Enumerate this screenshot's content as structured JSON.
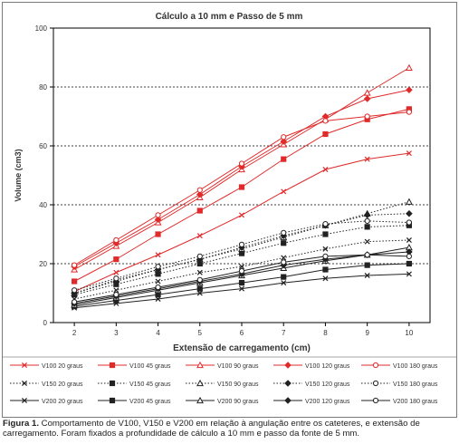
{
  "chart_data": {
    "type": "line",
    "title": "Cálculo a 10 mm e Passo de 5 mm",
    "xlabel": "Extensão de carregamento (cm)",
    "ylabel": "Volume (cm3)",
    "x": [
      2,
      3,
      4,
      5,
      6,
      7,
      8,
      9,
      10
    ],
    "xlim": [
      1.5,
      10.5
    ],
    "ylim": [
      0,
      100
    ],
    "yticks": [
      0,
      20,
      40,
      60,
      80,
      100
    ],
    "ygrid": [
      20,
      40,
      60,
      80
    ],
    "legend_position": "bottom",
    "series": [
      {
        "name": "V100 20 graus",
        "color": "#e02b2b",
        "dash": "solid",
        "marker": "x",
        "values": [
          10.5,
          17,
          23,
          29.5,
          36.5,
          44.5,
          52,
          55.5,
          57.5
        ]
      },
      {
        "name": "V100 45 graus",
        "color": "#e02b2b",
        "dash": "solid",
        "marker": "square",
        "values": [
          14,
          21.5,
          30,
          38,
          46,
          55.5,
          64,
          69,
          72.5
        ]
      },
      {
        "name": "V100 90 graus",
        "color": "#e02b2b",
        "dash": "solid",
        "marker": "triangle",
        "values": [
          18,
          26,
          34,
          42.5,
          52,
          60.5,
          69,
          78,
          86.5
        ]
      },
      {
        "name": "V100 120 graus",
        "color": "#e02b2b",
        "dash": "solid",
        "marker": "diamond",
        "values": [
          19,
          27,
          35,
          43.5,
          53,
          61.5,
          70,
          76,
          79
        ]
      },
      {
        "name": "V100 180 graus",
        "color": "#e02b2b",
        "dash": "solid",
        "marker": "circle-open",
        "values": [
          19.5,
          28,
          36.5,
          45,
          54,
          63,
          68.5,
          70,
          71.5
        ]
      },
      {
        "name": "V150 20 graus",
        "color": "#222222",
        "dash": "dotted",
        "marker": "x",
        "values": [
          8,
          11,
          14,
          17,
          19,
          22,
          25,
          27.5,
          28
        ]
      },
      {
        "name": "V150 45 graus",
        "color": "#222222",
        "dash": "dotted",
        "marker": "square",
        "values": [
          9.5,
          13,
          16.5,
          20,
          23.5,
          27,
          30,
          32.5,
          33
        ]
      },
      {
        "name": "V150 90 graus",
        "color": "#222222",
        "dash": "dotted",
        "marker": "triangle",
        "values": [
          10,
          14.5,
          18,
          21.5,
          25,
          29,
          33,
          37,
          41
        ]
      },
      {
        "name": "V150 120 graus",
        "color": "#222222",
        "dash": "dotted",
        "marker": "diamond",
        "values": [
          10,
          14,
          18,
          21.5,
          25.5,
          29.5,
          33,
          36.5,
          37
        ]
      },
      {
        "name": "V150 180 graus",
        "color": "#222222",
        "dash": "dotted",
        "marker": "circle-open",
        "values": [
          11,
          15,
          19,
          22.5,
          26.5,
          30.5,
          33.5,
          34.5,
          34
        ]
      },
      {
        "name": "V200 20 graus",
        "color": "#222222",
        "dash": "solid",
        "marker": "x",
        "values": [
          5,
          6.5,
          8,
          10,
          11.5,
          13.5,
          15,
          16,
          16.5
        ]
      },
      {
        "name": "V200 45 graus",
        "color": "#222222",
        "dash": "solid",
        "marker": "square",
        "values": [
          5.5,
          7.5,
          9.5,
          11.5,
          13.5,
          15.5,
          18,
          19.5,
          20
        ]
      },
      {
        "name": "V200 90 graus",
        "color": "#222222",
        "dash": "solid",
        "marker": "triangle",
        "values": [
          6,
          8.5,
          11,
          13.5,
          16,
          18.5,
          21,
          23,
          25.5
        ]
      },
      {
        "name": "V200 120 graus",
        "color": "#222222",
        "dash": "solid",
        "marker": "diamond",
        "values": [
          6.5,
          9,
          11.5,
          14,
          16.5,
          19.5,
          21.5,
          23,
          24
        ]
      },
      {
        "name": "V200 180 graus",
        "color": "#222222",
        "dash": "solid",
        "marker": "circle-open",
        "values": [
          7,
          9.5,
          12,
          14.5,
          17.5,
          20.5,
          22.5,
          23,
          22.5
        ]
      }
    ]
  },
  "caption": {
    "label": "Figura 1.",
    "text": "Comportamento de V100, V150 e V200 em relação à angulação entre os cateteres, e extensão de carregamento. Foram fixados a profundidade de cálculo a 10 mm e passo da fonte de 5 mm."
  }
}
